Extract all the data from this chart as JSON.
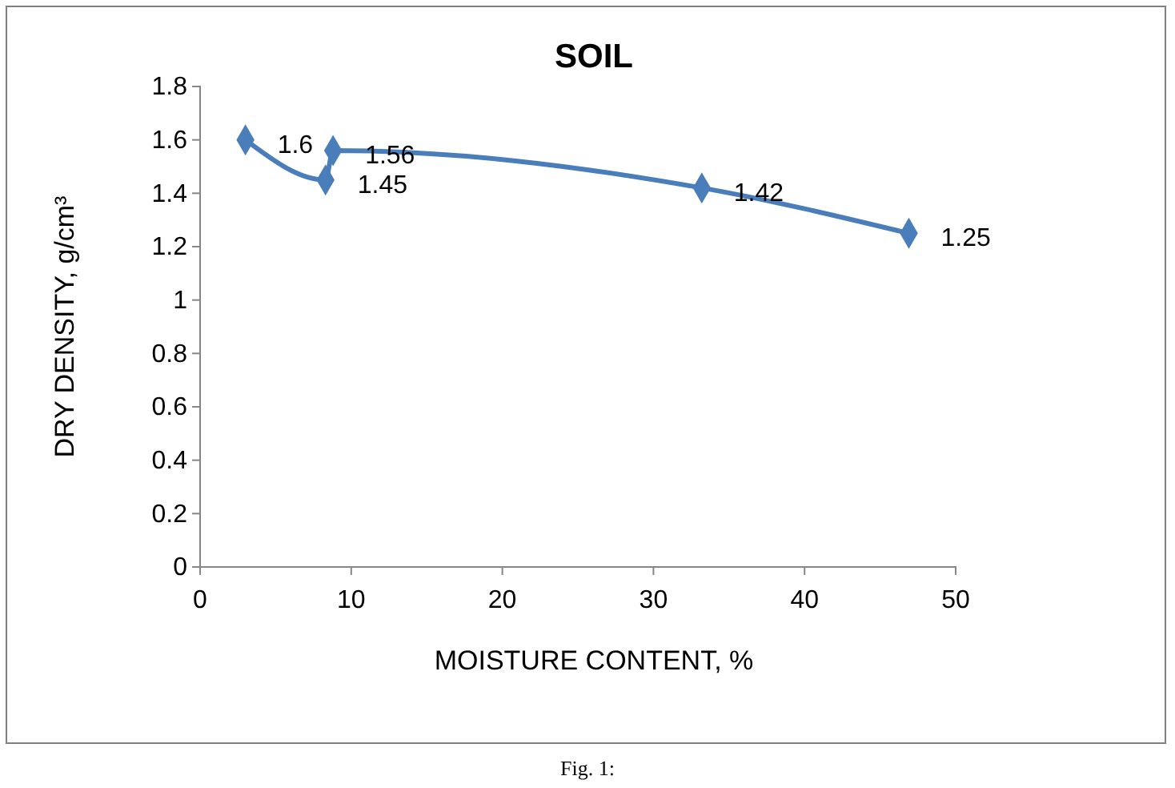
{
  "chart_data": {
    "type": "line",
    "title": "SOIL",
    "xlabel": "MOISTURE CONTENT, %",
    "ylabel": "DRY DENSITY, g/cm³",
    "x": [
      3,
      8.3,
      8.8,
      33.2,
      46.9
    ],
    "series": [
      {
        "color": "#4a7ebb",
        "values": [
          1.6,
          1.45,
          1.56,
          1.42,
          1.25
        ]
      }
    ],
    "xlim": [
      0,
      50
    ],
    "xticks": [
      0,
      10,
      20,
      30,
      40,
      50
    ],
    "ylim": [
      0,
      1.8
    ],
    "yticks": [
      0,
      0.2,
      0.4,
      0.6,
      0.8,
      1,
      1.2,
      1.4,
      1.6,
      1.8
    ],
    "grid": false,
    "marker": "diamond",
    "line_style": "solid",
    "data_labels": true,
    "annotations": [
      "Fig. 1:"
    ]
  }
}
